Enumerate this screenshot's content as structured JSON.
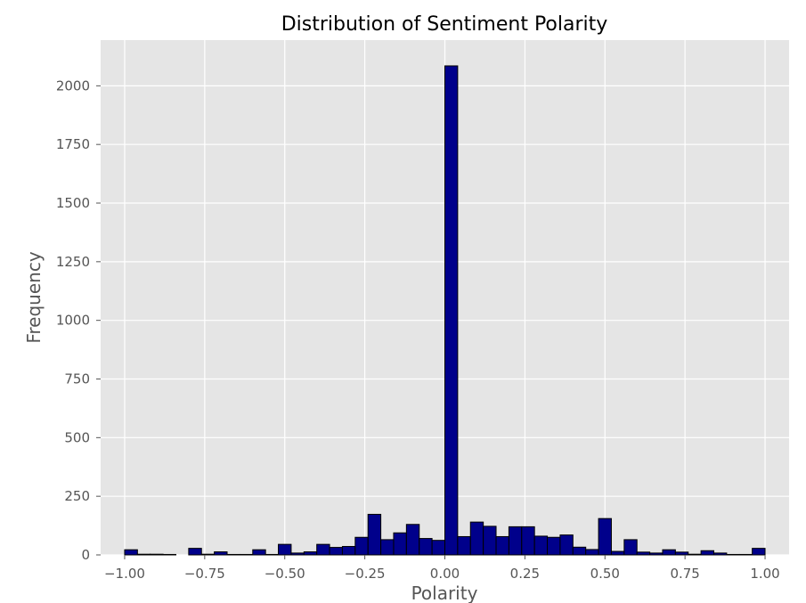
{
  "chart_data": {
    "type": "bar",
    "title": "Distribution of Sentiment Polarity",
    "xlabel": "Polarity",
    "ylabel": "Frequency",
    "xlim": [
      -1.075,
      1.075
    ],
    "ylim": [
      0,
      2195
    ],
    "x_ticks": [
      -1.0,
      -0.75,
      -0.5,
      -0.25,
      0.0,
      0.25,
      0.5,
      0.75,
      1.0
    ],
    "x_tick_labels": [
      "−1.00",
      "−0.75",
      "−0.50",
      "−0.25",
      "0.00",
      "0.25",
      "0.50",
      "0.75",
      "1.00"
    ],
    "y_ticks": [
      0,
      250,
      500,
      750,
      1000,
      1250,
      1500,
      1750,
      2000
    ],
    "y_tick_labels": [
      "0",
      "250",
      "500",
      "750",
      "1000",
      "1250",
      "1500",
      "1750",
      "2000"
    ],
    "grid": true,
    "bar_color": "#00008b",
    "edge_color": "#000000",
    "background_color": "#e5e5e5",
    "grid_color": "#ffffff",
    "bin_edges": [
      -1.0,
      -0.96,
      -0.92,
      -0.88,
      -0.84,
      -0.8,
      -0.76,
      -0.72,
      -0.68,
      -0.64,
      -0.6,
      -0.56,
      -0.52,
      -0.48,
      -0.44,
      -0.4,
      -0.36,
      -0.32,
      -0.28,
      -0.24,
      -0.2,
      -0.16,
      -0.12,
      -0.08,
      -0.04,
      0.0,
      0.04,
      0.08,
      0.12,
      0.16,
      0.2,
      0.24,
      0.28,
      0.32,
      0.36,
      0.4,
      0.44,
      0.48,
      0.52,
      0.56,
      0.6,
      0.64,
      0.68,
      0.72,
      0.76,
      0.8,
      0.84,
      0.88,
      0.92,
      0.96,
      1.0
    ],
    "counts": [
      22,
      3,
      3,
      2,
      0,
      28,
      3,
      13,
      2,
      2,
      22,
      2,
      45,
      8,
      13,
      45,
      32,
      36,
      75,
      173,
      65,
      94,
      130,
      70,
      62,
      2085,
      78,
      140,
      122,
      78,
      120,
      120,
      80,
      75,
      85,
      33,
      23,
      155,
      15,
      65,
      12,
      8,
      22,
      12,
      3,
      18,
      8,
      2,
      2,
      28
    ]
  }
}
